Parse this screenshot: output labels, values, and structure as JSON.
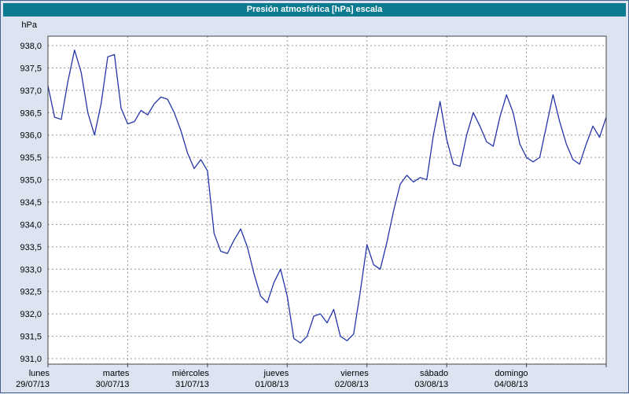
{
  "title_bar": {
    "title": "Presión atmosférica [hPa] escala",
    "bg_color": "#0d7b8f",
    "text_color": "#ffffff"
  },
  "colors": {
    "page_bg": "#dce4f1",
    "plot_bg": "#ffffff",
    "grid": "#999999",
    "axis": "#444444",
    "line": "#2535a8",
    "text": "#000000",
    "frame": "#46618c"
  },
  "chart_data": {
    "type": "line",
    "title": "Presión atmosférica [hPa] escala",
    "ylabel": "hPa",
    "ylim": [
      931.0,
      938.0
    ],
    "y_tick_step": 0.5,
    "y_ticks": [
      "938,0",
      "937,5",
      "937,0",
      "936,5",
      "936,0",
      "935,5",
      "935,0",
      "934,5",
      "934,0",
      "933,5",
      "933,0",
      "932,5",
      "932,0",
      "931,5",
      "931,0"
    ],
    "x_days": [
      {
        "name": "lunes",
        "date": "29/07/13"
      },
      {
        "name": "martes",
        "date": "30/07/13"
      },
      {
        "name": "miércoles",
        "date": "31/07/13"
      },
      {
        "name": "jueves",
        "date": "01/08/13"
      },
      {
        "name": "viernes",
        "date": "02/08/13"
      },
      {
        "name": "sábado",
        "date": "03/08/13"
      },
      {
        "name": "domingo",
        "date": "04/08/13"
      }
    ],
    "points_per_day": 12,
    "grid": "dashed",
    "legend": "none",
    "series": [
      {
        "name": "presión atmosférica",
        "color": "#2535a8",
        "values": [
          937.1,
          936.4,
          936.35,
          937.2,
          937.9,
          937.4,
          936.5,
          936.0,
          936.7,
          937.75,
          937.8,
          936.6,
          936.25,
          936.3,
          936.55,
          936.45,
          936.7,
          936.85,
          936.8,
          936.5,
          936.1,
          935.6,
          935.25,
          935.45,
          935.2,
          933.8,
          933.4,
          933.35,
          933.65,
          933.9,
          933.5,
          932.9,
          932.4,
          932.25,
          932.7,
          933.0,
          932.4,
          931.45,
          931.35,
          931.5,
          931.95,
          932.0,
          931.8,
          932.1,
          931.5,
          931.4,
          931.55,
          932.5,
          933.55,
          933.1,
          933.0,
          933.6,
          934.3,
          934.9,
          935.1,
          934.95,
          935.05,
          935.0,
          936.0,
          936.75,
          935.9,
          935.35,
          935.3,
          936.0,
          936.5,
          936.2,
          935.85,
          935.75,
          936.4,
          936.9,
          936.5,
          935.8,
          935.5,
          935.4,
          935.5,
          936.2,
          936.9,
          936.3,
          935.8,
          935.45,
          935.35,
          935.8,
          936.2,
          935.95,
          936.4
        ]
      }
    ]
  }
}
